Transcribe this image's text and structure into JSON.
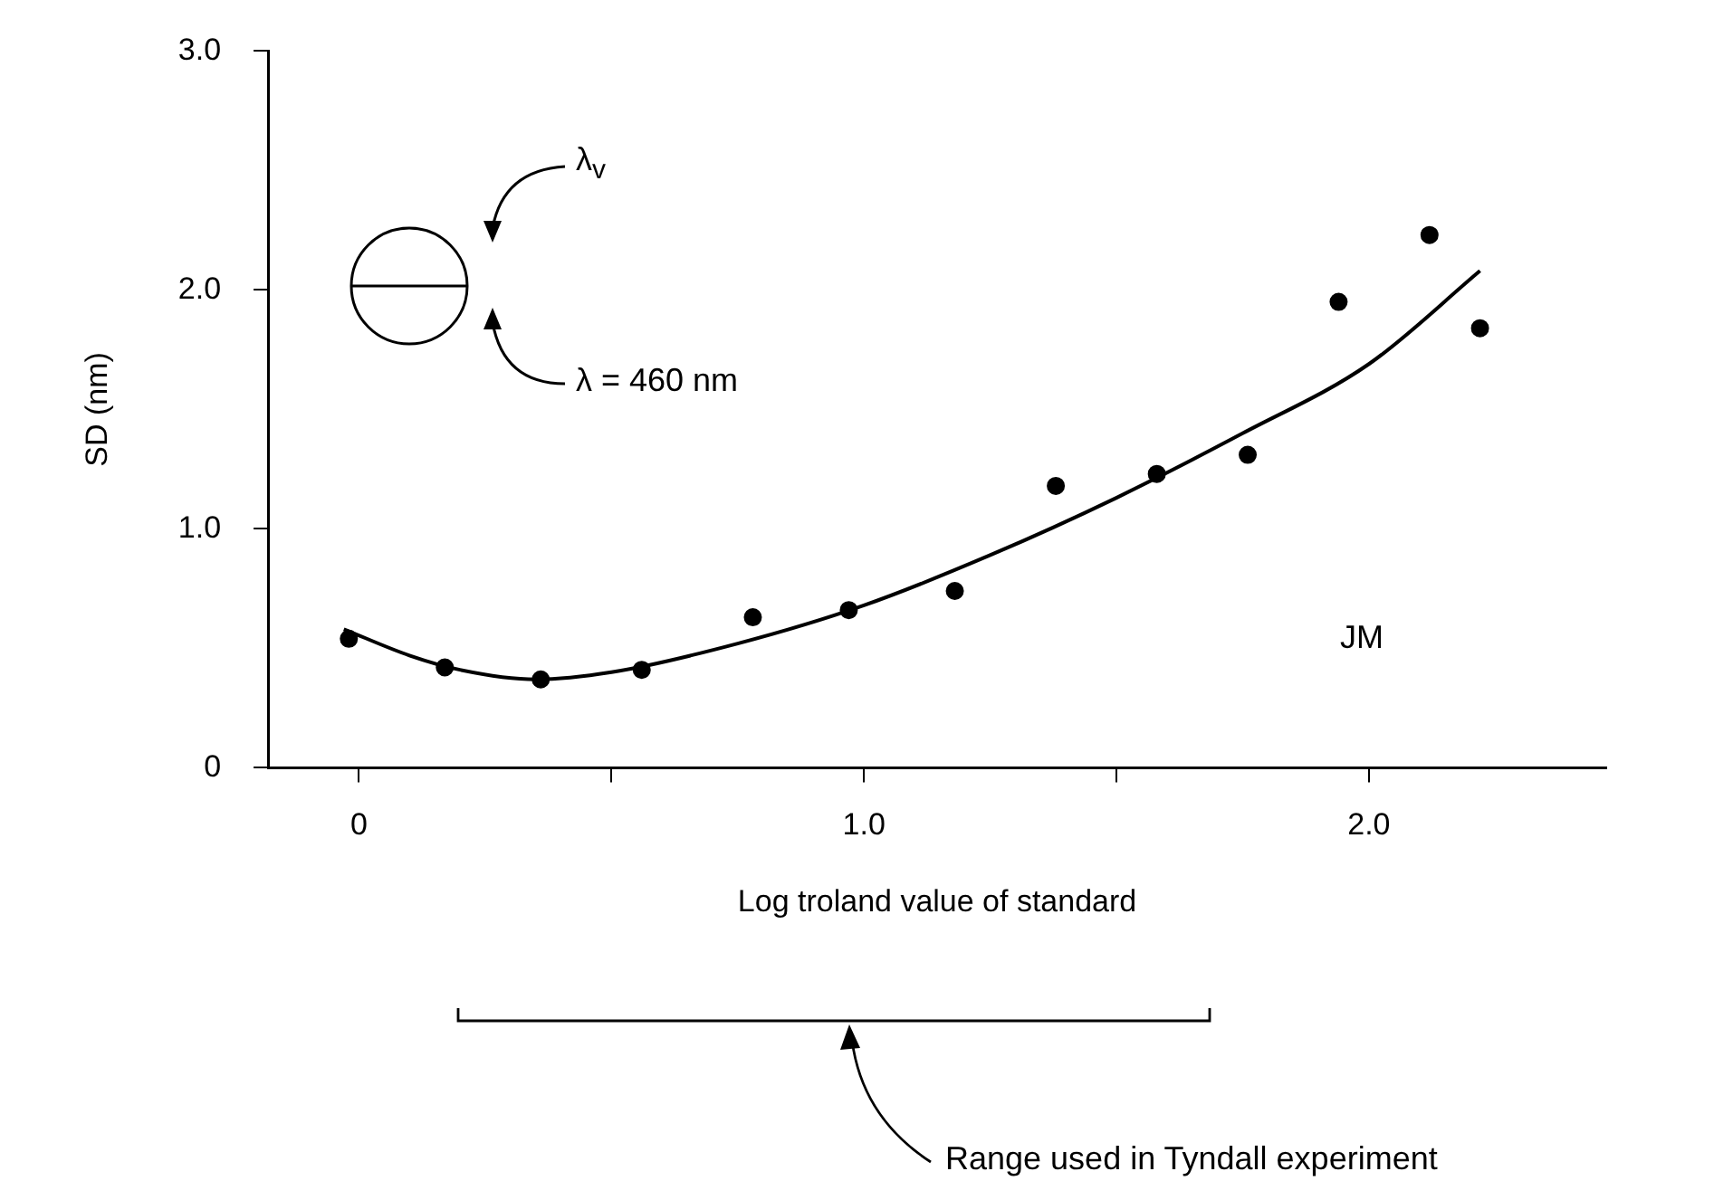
{
  "chart_data": {
    "type": "scatter",
    "xlabel": "Log troland value of standard",
    "ylabel": "SD (nm)",
    "xlim": [
      -0.18,
      2.47
    ],
    "xticks": [
      0,
      {
        "value": 0.5,
        "label": null
      },
      {
        "value": 1,
        "label": "1.0"
      },
      {
        "value": 1.5,
        "label": null
      },
      {
        "value": 2,
        "label": "2.0"
      }
    ],
    "ylim": [
      0,
      3
    ],
    "yticks": [
      0,
      {
        "value": 1,
        "label": "1.0"
      },
      {
        "value": 2,
        "label": "2.0"
      },
      {
        "value": 3,
        "label": "3.0"
      }
    ],
    "grid": false,
    "legend": false,
    "series": [
      {
        "color": "#000000",
        "marker": "circle",
        "x": [
          -0.02,
          0.17,
          0.36,
          0.56,
          0.78,
          0.97,
          1.18,
          1.38,
          1.58,
          1.76,
          1.94,
          2.12,
          2.22
        ],
        "values": [
          0.54,
          0.42,
          0.37,
          0.41,
          0.63,
          0.66,
          0.74,
          1.18,
          1.23,
          1.31,
          1.95,
          2.23,
          1.84
        ]
      },
      {
        "type": "line",
        "color": "#000000",
        "marker": "none",
        "line_style": "solid",
        "x": [
          -0.03,
          0.1,
          0.2,
          0.35,
          0.5,
          0.75,
          1.0,
          1.25,
          1.5,
          1.75,
          2.0,
          2.22
        ],
        "values": [
          0.58,
          0.47,
          0.41,
          0.37,
          0.4,
          0.52,
          0.68,
          0.89,
          1.13,
          1.4,
          1.69,
          2.08
        ]
      }
    ],
    "annotations": [
      "λ$_{v}$",
      "λ = 460 nm",
      "JM",
      "Range used in Tyndall experiment"
    ]
  }
}
